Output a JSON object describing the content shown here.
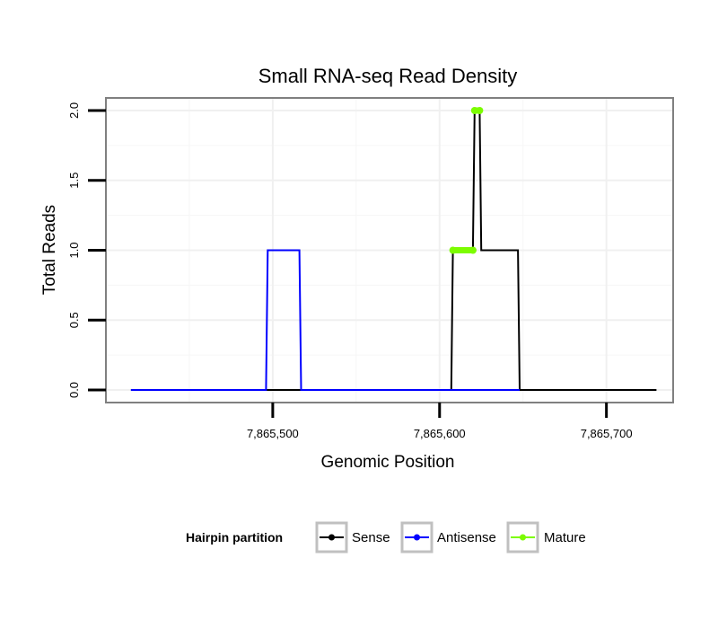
{
  "chart_data": {
    "type": "line",
    "title": "Small RNA-seq Read Density",
    "xlabel": "Genomic Position",
    "ylabel": "Total Reads",
    "xlim": [
      7865400,
      7865740
    ],
    "ylim": [
      -0.09,
      2.09
    ],
    "x_ticks": [
      7865500,
      7865600,
      7865700
    ],
    "x_tick_labels": [
      "7,865,500",
      "7,865,600",
      "7,865,700"
    ],
    "y_ticks": [
      0,
      0.5,
      1,
      1.5,
      2
    ],
    "y_tick_labels": [
      "0.0",
      "0.5",
      "1.0",
      "1.5",
      "2.0"
    ],
    "grid": true,
    "legend": {
      "title": "Hairpin partition",
      "position": "bottom",
      "entries": [
        "Sense",
        "Antisense",
        "Mature"
      ]
    },
    "series": [
      {
        "name": "Sense",
        "color": "#000000",
        "style": "line",
        "x": [
          7865415,
          7865607,
          7865608,
          7865620,
          7865621,
          7865624,
          7865625,
          7865647,
          7865648,
          7865730
        ],
        "y": [
          0,
          0,
          1,
          1,
          2,
          2,
          1,
          1,
          0,
          0
        ]
      },
      {
        "name": "Antisense",
        "color": "#0000ff",
        "style": "line",
        "x": [
          7865415,
          7865496,
          7865497,
          7865516,
          7865517,
          7865607,
          7865648
        ],
        "y": [
          0,
          0,
          1,
          1,
          0,
          0,
          0
        ]
      },
      {
        "name": "Mature",
        "color": "#7cfc00",
        "style": "points",
        "segments": [
          {
            "x": [
              7865608,
              7865620
            ],
            "y": [
              1,
              1
            ]
          },
          {
            "x": [
              7865621,
              7865624
            ],
            "y": [
              2,
              2
            ]
          }
        ]
      }
    ]
  }
}
